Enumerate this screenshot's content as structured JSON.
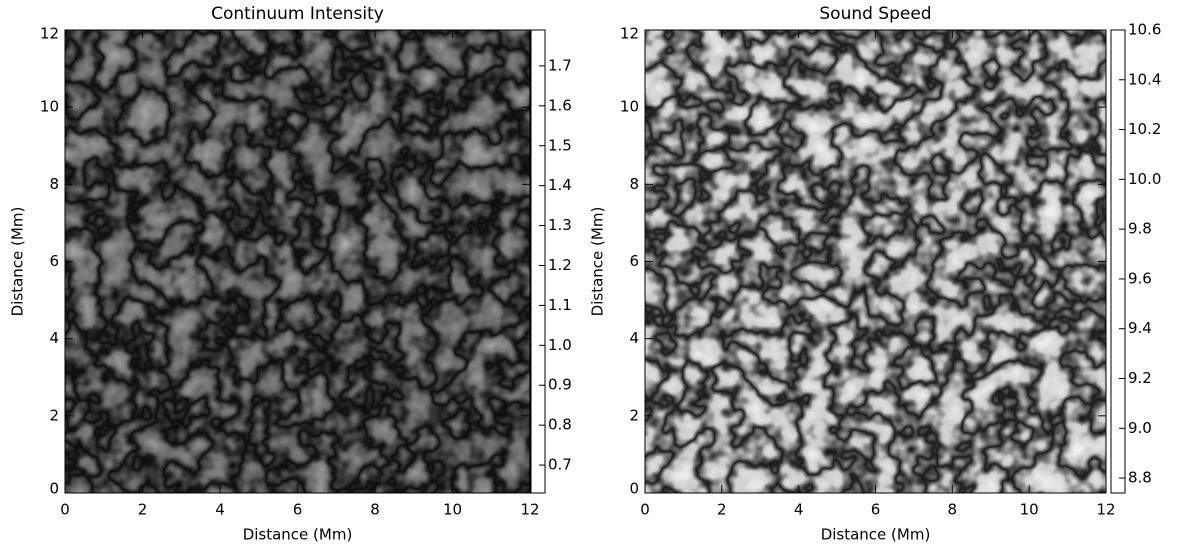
{
  "chart_data": [
    {
      "type": "heatmap",
      "title": "Continuum Intensity",
      "xlabel": "Distance (Mm)",
      "ylabel": "Distance (Mm)",
      "xlim": [
        0,
        12
      ],
      "ylim": [
        0,
        12
      ],
      "xticks": [
        0,
        2,
        4,
        6,
        8,
        10,
        12
      ],
      "yticks": [
        0,
        2,
        4,
        6,
        8,
        10,
        12
      ],
      "colormap": "gray",
      "clim": [
        0.63,
        1.79
      ],
      "cticks": [
        0.7,
        0.8,
        0.9,
        {
          "value": 1,
          "label": "1.0"
        },
        1.1,
        1.2,
        1.3,
        1.4,
        1.5,
        1.6,
        1.7
      ]
    },
    {
      "type": "heatmap",
      "title": "Sound Speed",
      "xlabel": "Distance (Mm)",
      "ylabel": "Distance (Mm)",
      "xlim": [
        0,
        12
      ],
      "ylim": [
        0,
        12
      ],
      "xticks": [
        0,
        2,
        4,
        6,
        8,
        10,
        12
      ],
      "yticks": [
        0,
        2,
        4,
        6,
        8,
        10,
        12
      ],
      "colormap": "gray",
      "clim": [
        8.74,
        10.6
      ],
      "cticks": [
        8.8,
        {
          "value": 9,
          "label": "9.0"
        },
        9.2,
        9.4,
        9.6,
        9.8,
        {
          "value": 10,
          "label": "10.0"
        },
        10.2,
        10.4,
        10.6
      ]
    }
  ]
}
